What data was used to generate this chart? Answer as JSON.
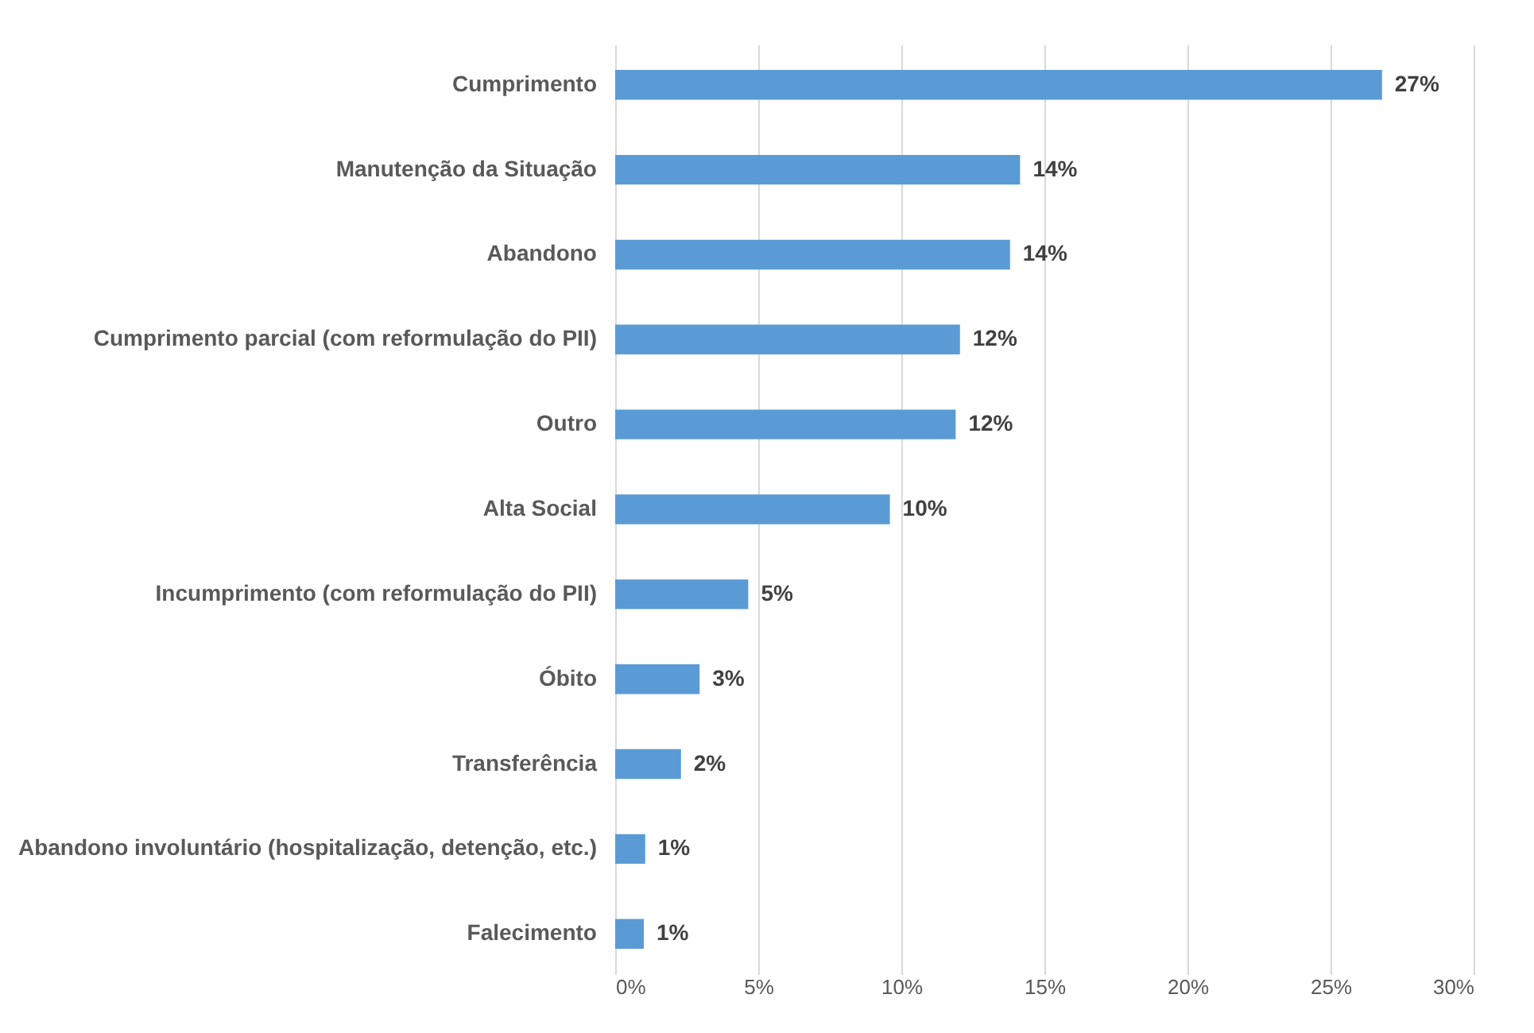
{
  "chart_data": {
    "type": "bar",
    "orientation": "horizontal",
    "categories": [
      "Cumprimento",
      "Manutenção da Situação",
      "Abandono",
      "Cumprimento parcial (com reformulação do PII)",
      "Outro",
      "Alta Social",
      "Incumprimento (com reformulação do PII)",
      "Óbito",
      "Transferência",
      "Abandono involuntário (hospitalização, detenção, etc.)",
      "Falecimento"
    ],
    "values": [
      26.8,
      14.15,
      13.8,
      12.05,
      11.9,
      9.6,
      4.65,
      2.95,
      2.3,
      1.05,
      1.0
    ],
    "value_labels": [
      "27%",
      "14%",
      "14%",
      "12%",
      "12%",
      "10%",
      "5%",
      "3%",
      "2%",
      "1%",
      "1%"
    ],
    "color": "#5b9bd5",
    "xlim": [
      0,
      30
    ],
    "xticks": [
      {
        "value": 0,
        "label": "0%"
      },
      {
        "value": 5,
        "label": "5%"
      },
      {
        "value": 10,
        "label": "10%"
      },
      {
        "value": 15,
        "label": "15%"
      },
      {
        "value": 20,
        "label": "20%"
      },
      {
        "value": 25,
        "label": "25%"
      },
      {
        "value": 30,
        "label": "30%"
      }
    ],
    "grid": "x"
  }
}
